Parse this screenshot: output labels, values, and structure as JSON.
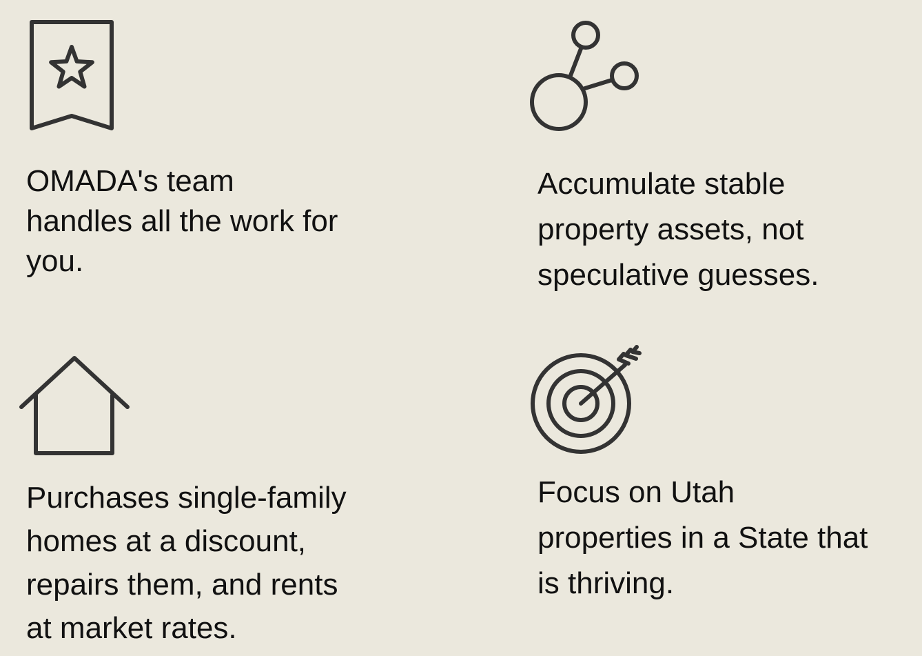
{
  "features": [
    {
      "icon": "bookmark-star-icon",
      "text": "OMADA's team\nhandles all the work for\nyou."
    },
    {
      "icon": "molecule-network-icon",
      "text": "Accumulate stable\nproperty assets, not\nspeculative guesses."
    },
    {
      "icon": "house-icon",
      "text": "Purchases single-family\nhomes at a discount,\nrepairs them, and rents\nat market rates."
    },
    {
      "icon": "target-arrow-icon",
      "text": "Focus on Utah\nproperties in a State that\nis thriving."
    }
  ],
  "colors": {
    "background": "#ebe8dd",
    "icon_stroke": "#333333",
    "text": "#111111"
  }
}
